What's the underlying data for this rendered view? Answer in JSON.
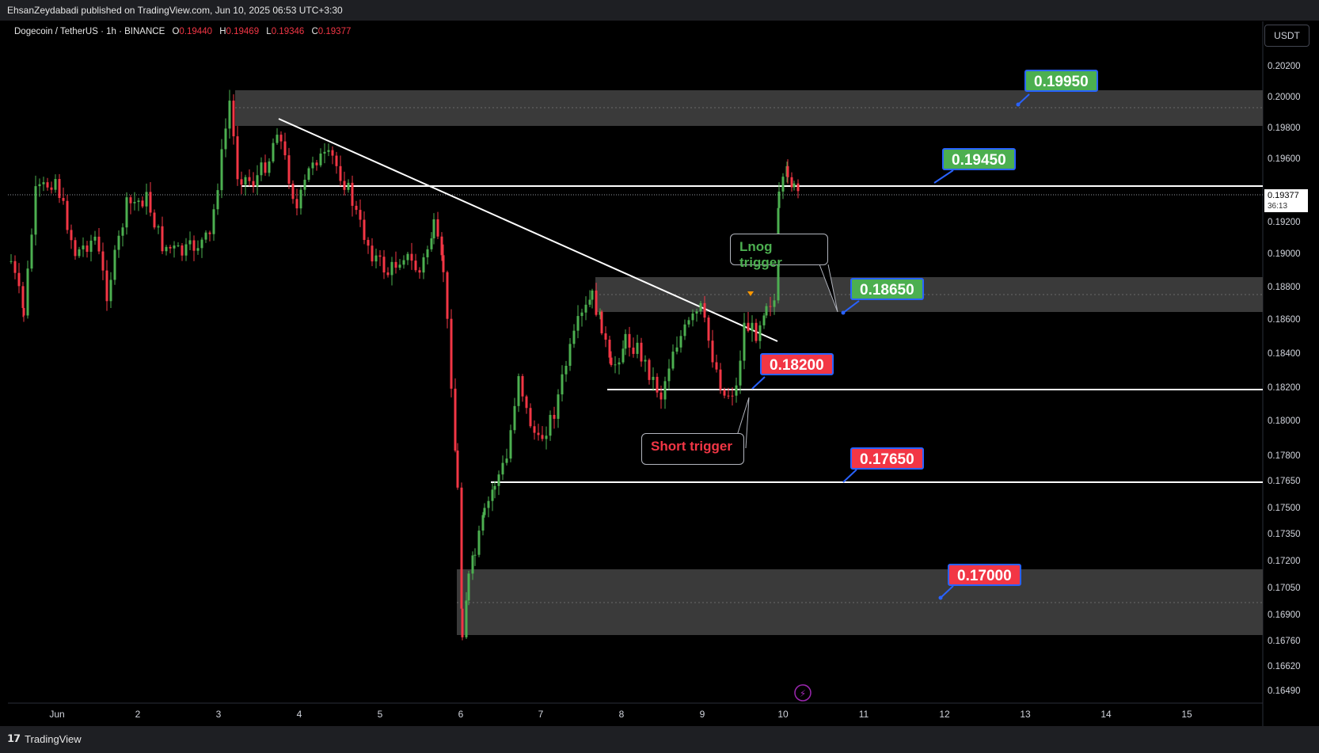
{
  "header": {
    "publisher": "EhsanZeydabadi published on TradingView.com, Jun 10, 2025 06:53 UTC+3:30"
  },
  "symbol": {
    "name": "Dogecoin / TetherUS · 1h · BINANCE",
    "o_label": "O",
    "o": "0.19440",
    "h_label": "H",
    "h": "0.19469",
    "l_label": "L",
    "l": "0.19346",
    "c_label": "C",
    "c": "0.19377"
  },
  "currency": "USDT",
  "current_price": {
    "value": "0.19377",
    "countdown": "36:13"
  },
  "y_axis": [
    "0.20200",
    "0.20000",
    "0.19800",
    "0.19600",
    "0.19200",
    "0.19000",
    "0.18800",
    "0.18600",
    "0.18400",
    "0.18200",
    "0.18000",
    "0.17800",
    "0.17650",
    "0.17500",
    "0.17350",
    "0.17200",
    "0.17050",
    "0.16900",
    "0.16760",
    "0.16620",
    "0.16490"
  ],
  "x_axis": [
    "Jun",
    "2",
    "3",
    "4",
    "5",
    "6",
    "7",
    "8",
    "9",
    "10",
    "11",
    "12",
    "13",
    "14",
    "15"
  ],
  "levels": {
    "l1": "0.19950",
    "l2": "0.19450",
    "l3": "0.18650",
    "l4": "0.18200",
    "l5": "0.17650",
    "l6": "0.17000"
  },
  "annotations": {
    "long": "Lnog trigger",
    "short": "Short trigger"
  },
  "footer": {
    "brand": "TradingView"
  },
  "colors": {
    "up": "#4caf50",
    "down": "#f23645",
    "zone": "#3a3a3a",
    "tag_border": "#2962ff"
  }
}
